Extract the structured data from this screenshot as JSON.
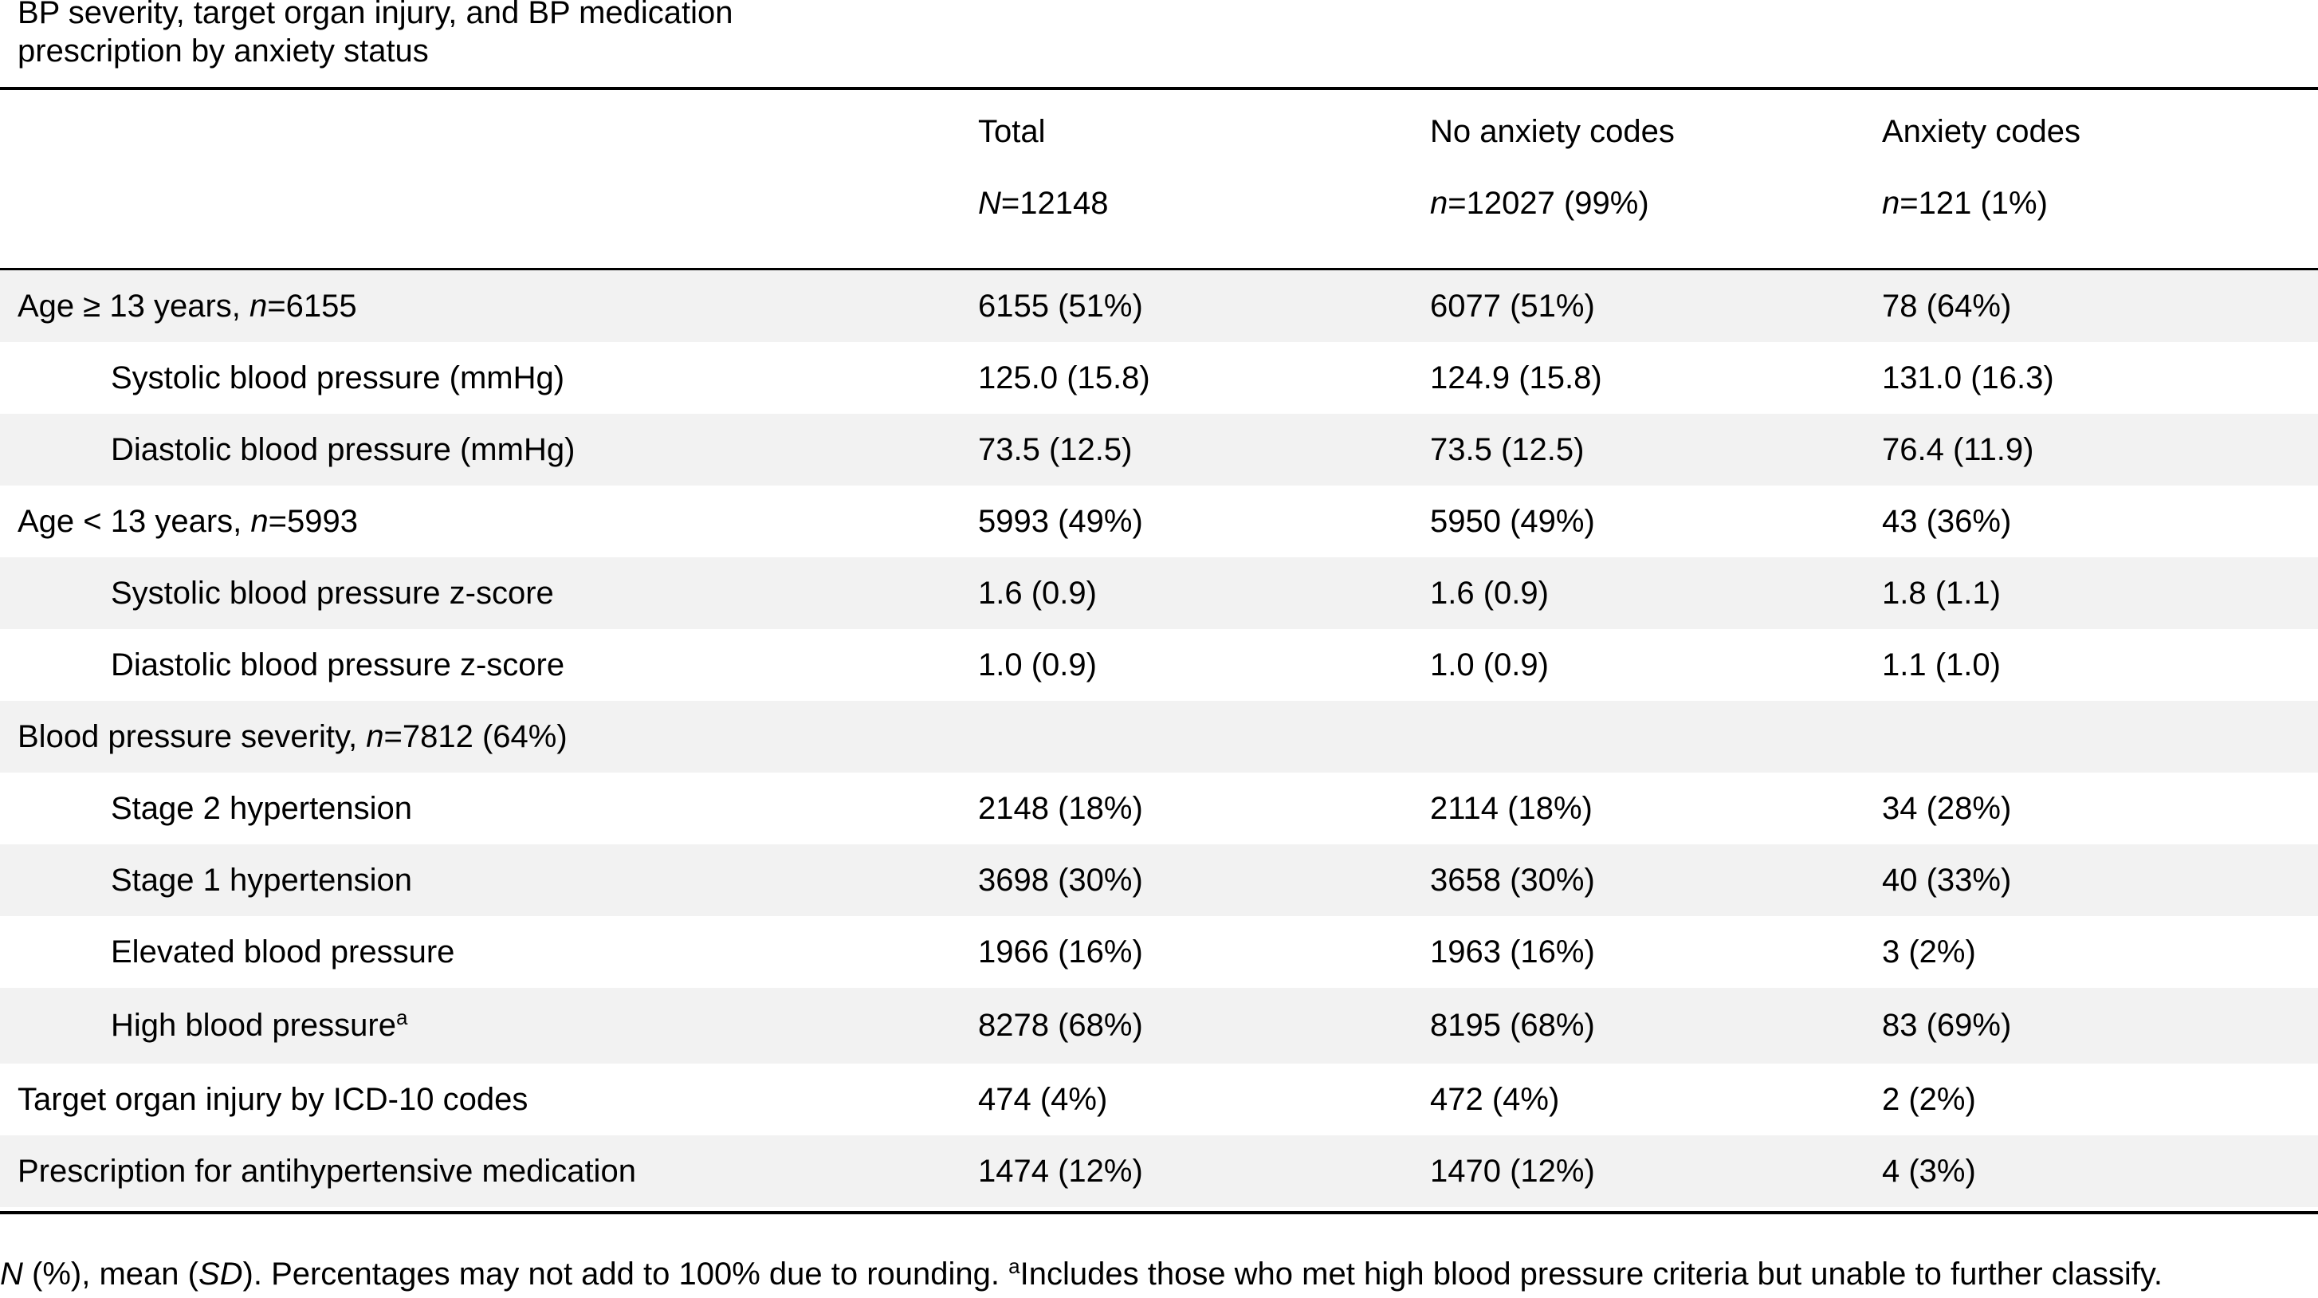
{
  "caption": "BP severity, target organ injury, and BP medication prescription by anxiety status",
  "header": {
    "columns": [
      {
        "label": "Total",
        "n_prefix": "N",
        "n_value": "=12148"
      },
      {
        "label": "No anxiety codes",
        "n_prefix": "n",
        "n_value": "=12027 (99%)"
      },
      {
        "label": "Anxiety codes",
        "n_prefix": "n",
        "n_value": "=121 (1%)"
      }
    ]
  },
  "rows": [
    {
      "label": "Age ≥ 13 years, ",
      "n_prefix": "n",
      "n_value": "=6155",
      "total": "6155 (51%)",
      "no_anxiety": "6077 (51%)",
      "anxiety": "78 (64%)"
    },
    {
      "label": "Systolic blood pressure (mmHg)",
      "total": "125.0 (15.8)",
      "no_anxiety": "124.9 (15.8)",
      "anxiety": "131.0 (16.3)"
    },
    {
      "label": "Diastolic blood pressure (mmHg)",
      "total": "73.5 (12.5)",
      "no_anxiety": "73.5 (12.5)",
      "anxiety": "76.4 (11.9)"
    },
    {
      "label": "Age < 13 years, ",
      "n_prefix": "n",
      "n_value": "=5993",
      "total": "5993 (49%)",
      "no_anxiety": "5950 (49%)",
      "anxiety": "43 (36%)"
    },
    {
      "label": "Systolic blood pressure z-score",
      "total": "1.6 (0.9)",
      "no_anxiety": "1.6 (0.9)",
      "anxiety": "1.8 (1.1)"
    },
    {
      "label": "Diastolic blood pressure z-score",
      "total": "1.0 (0.9)",
      "no_anxiety": "1.0 (0.9)",
      "anxiety": "1.1 (1.0)"
    },
    {
      "label": "Blood pressure severity, ",
      "n_prefix": "n",
      "n_value": "=7812 (64%)",
      "total": "",
      "no_anxiety": "",
      "anxiety": ""
    },
    {
      "label": "Stage 2 hypertension",
      "total": "2148 (18%)",
      "no_anxiety": "2114 (18%)",
      "anxiety": "34 (28%)"
    },
    {
      "label": "Stage 1 hypertension",
      "total": "3698 (30%)",
      "no_anxiety": "3658 (30%)",
      "anxiety": "40 (33%)"
    },
    {
      "label": "Elevated blood pressure",
      "total": "1966 (16%)",
      "no_anxiety": "1963 (16%)",
      "anxiety": "3 (2%)"
    },
    {
      "label": "High blood pressure",
      "sup": "a",
      "total": "8278 (68%)",
      "no_anxiety": "8195 (68%)",
      "anxiety": "83 (69%)"
    },
    {
      "label": "Target organ injury by ICD-10 codes",
      "total": "474 (4%)",
      "no_anxiety": "472 (4%)",
      "anxiety": "2 (2%)"
    },
    {
      "label": "Prescription for antihypertensive medication",
      "total": "1474 (12%)",
      "no_anxiety": "1470 (12%)",
      "anxiety": "4 (3%)"
    }
  ],
  "footnote": {
    "n_italic": "N",
    "part1": " (%), mean (",
    "sd_italic": "SD",
    "part2": "). Percentages may not add to 100% due to rounding. ",
    "sup": "a",
    "part3": "Includes those who met high blood pressure criteria but unable to further classify."
  }
}
